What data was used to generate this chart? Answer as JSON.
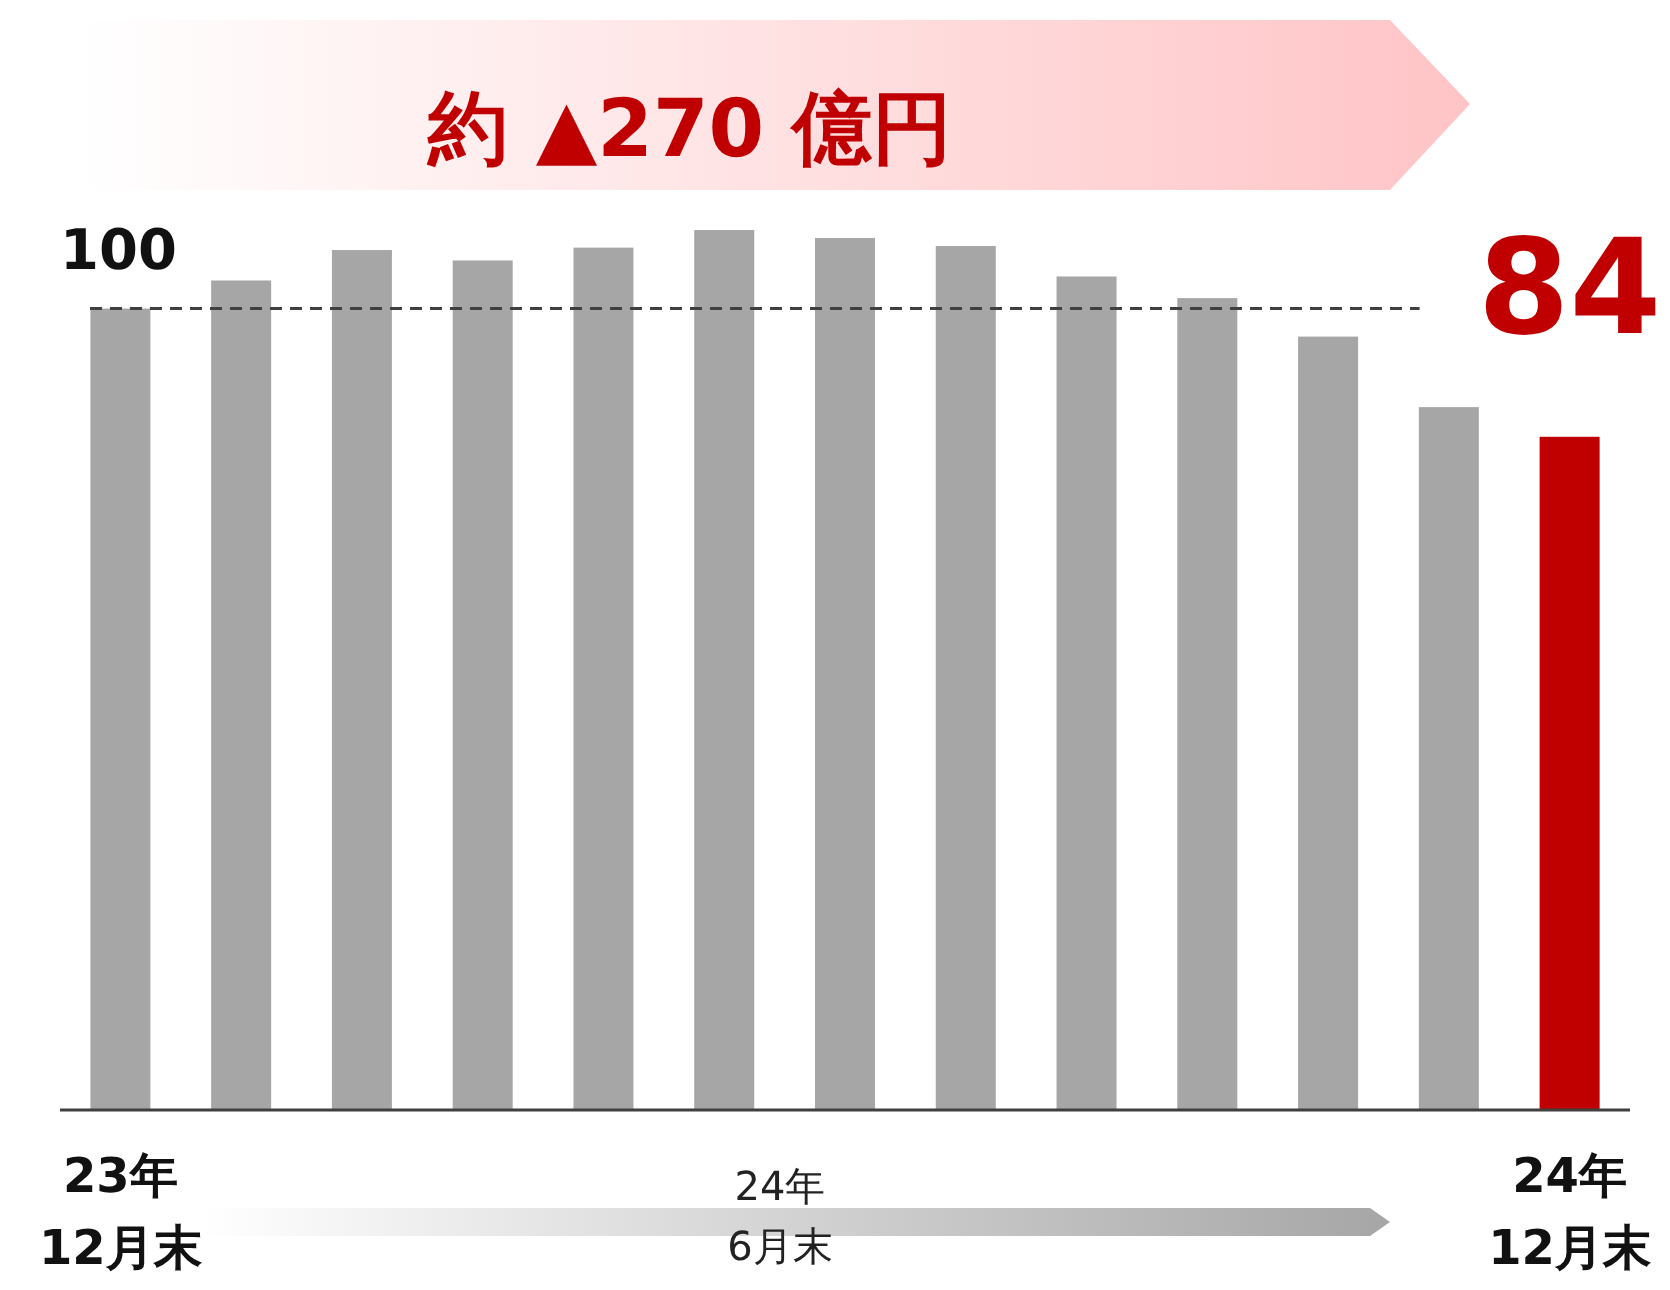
{
  "chart_data": {
    "type": "bar",
    "categories": [
      "23年\n12月末",
      null,
      null,
      null,
      null,
      null,
      null,
      null,
      null,
      null,
      null,
      null,
      "24年\n12月末"
    ],
    "values": [
      100,
      103.5,
      107.3,
      106,
      107.6,
      109.8,
      108.8,
      107.8,
      104,
      101.3,
      96.5,
      87.7,
      84
    ],
    "colors": [
      "#a6a6a6",
      "#a6a6a6",
      "#a6a6a6",
      "#a6a6a6",
      "#a6a6a6",
      "#a6a6a6",
      "#a6a6a6",
      "#a6a6a6",
      "#a6a6a6",
      "#a6a6a6",
      "#a6a6a6",
      "#a6a6a6",
      "#c00000"
    ],
    "value_labels": [
      null,
      null,
      null,
      null,
      null,
      null,
      null,
      null,
      null,
      null,
      null,
      null,
      "84"
    ],
    "ref_lines": [
      {
        "axis": "y",
        "value": 100,
        "label": "100",
        "line_style": "dashed",
        "color": "#404040"
      }
    ],
    "annotations": [
      "約 ▲270 億円",
      "24年\n6月末"
    ]
  }
}
